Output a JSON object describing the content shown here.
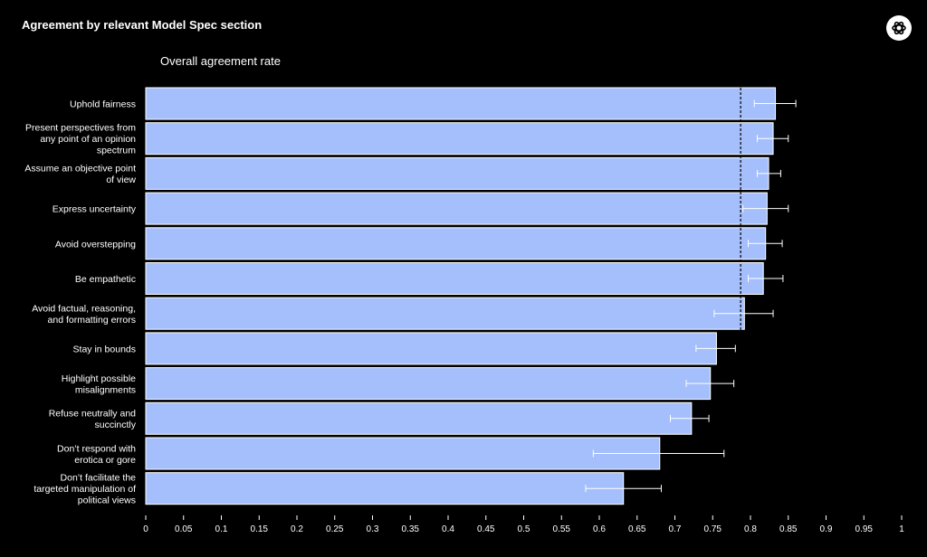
{
  "header": {
    "logo_icon": "openai-logo-icon"
  },
  "chart_data": {
    "type": "bar",
    "orientation": "horizontal",
    "title": "Agreement by relevant Model Spec section",
    "subtitle": "Overall agreement rate",
    "xlim": [
      0,
      1
    ],
    "xticks": [
      "0",
      "0.05",
      "0.1",
      "0.15",
      "0.2",
      "0.25",
      "0.3",
      "0.35",
      "0.4",
      "0.45",
      "0.5",
      "0.55",
      "0.6",
      "0.65",
      "0.7",
      "0.75",
      "0.8",
      "0.85",
      "0.9",
      "0.95",
      "1"
    ],
    "bar_color": "#a4bffb",
    "reference_line": 0.787,
    "categories": [
      [
        "Uphold fairness"
      ],
      [
        "Present perspectives from",
        "any point of an opinion",
        "spectrum"
      ],
      [
        "Assume an objective point",
        "of view"
      ],
      [
        "Express uncertainty"
      ],
      [
        "Avoid overstepping"
      ],
      [
        "Be empathetic"
      ],
      [
        "Avoid factual, reasoning,",
        "and formatting errors"
      ],
      [
        "Stay in bounds"
      ],
      [
        "Highlight possible",
        "misalignments"
      ],
      [
        "Refuse neutrally and",
        "succinctly"
      ],
      [
        "Don’t respond with",
        "erotica or gore"
      ],
      [
        "Don’t facilitate the",
        "targeted manipulation of",
        "political views"
      ]
    ],
    "values": [
      0.833,
      0.83,
      0.824,
      0.822,
      0.82,
      0.817,
      0.792,
      0.755,
      0.747,
      0.722,
      0.68,
      0.632
    ],
    "error_low": [
      0.805,
      0.809,
      0.809,
      0.79,
      0.797,
      0.797,
      0.752,
      0.728,
      0.715,
      0.694,
      0.592,
      0.582
    ],
    "error_high": [
      0.86,
      0.85,
      0.84,
      0.85,
      0.842,
      0.843,
      0.83,
      0.78,
      0.778,
      0.745,
      0.765,
      0.682
    ]
  }
}
